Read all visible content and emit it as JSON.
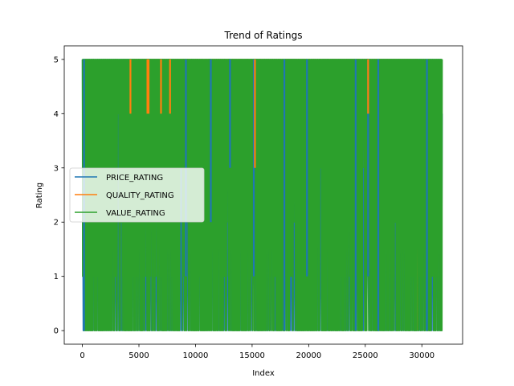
{
  "chart_data": {
    "type": "line",
    "title": "Trend of Ratings",
    "xlabel": "Index",
    "ylabel": "Rating",
    "xlim": [
      -1600,
      33600
    ],
    "ylim": [
      -0.25,
      5.25
    ],
    "xticks": [
      0,
      5000,
      10000,
      15000,
      20000,
      25000,
      30000
    ],
    "yticks": [
      0,
      1,
      2,
      3,
      4,
      5
    ],
    "grid": false,
    "legend_position": "center-left",
    "n_points": 32000,
    "series": [
      {
        "name": "PRICE_RATING",
        "color": "#1f77b4",
        "values_note": "dense oscillation between 0 and 5",
        "segments": [
          {
            "x": 0,
            "y": 5
          },
          {
            "x": 150,
            "y": 0
          },
          {
            "x": 9100,
            "y": 5
          },
          {
            "x": 9150,
            "y": 1
          },
          {
            "x": 11300,
            "y": 5
          },
          {
            "x": 11350,
            "y": 2
          },
          {
            "x": 13000,
            "y": 5
          },
          {
            "x": 13050,
            "y": 3
          },
          {
            "x": 15100,
            "y": 5
          },
          {
            "x": 15150,
            "y": 1
          },
          {
            "x": 17800,
            "y": 5
          },
          {
            "x": 17850,
            "y": 0
          },
          {
            "x": 19800,
            "y": 5
          },
          {
            "x": 19850,
            "y": 1
          },
          {
            "x": 24100,
            "y": 5
          },
          {
            "x": 24150,
            "y": 0
          },
          {
            "x": 25200,
            "y": 5
          },
          {
            "x": 25250,
            "y": 1
          },
          {
            "x": 26100,
            "y": 5
          },
          {
            "x": 26150,
            "y": 0
          },
          {
            "x": 30400,
            "y": 5
          },
          {
            "x": 30450,
            "y": 0
          },
          {
            "x": 31800,
            "y": 4
          }
        ]
      },
      {
        "name": "QUALITY_RATING",
        "color": "#ff7f0e",
        "values_note": "dense oscillation between 0 and 5",
        "segments": [
          {
            "x": 4200,
            "y": 5
          },
          {
            "x": 4250,
            "y": 4
          },
          {
            "x": 5700,
            "y": 5
          },
          {
            "x": 5750,
            "y": 4
          },
          {
            "x": 5800,
            "y": 5
          },
          {
            "x": 5850,
            "y": 4
          },
          {
            "x": 6900,
            "y": 5
          },
          {
            "x": 6950,
            "y": 4
          },
          {
            "x": 7700,
            "y": 5
          },
          {
            "x": 7750,
            "y": 4
          },
          {
            "x": 15200,
            "y": 5
          },
          {
            "x": 15250,
            "y": 3
          },
          {
            "x": 25200,
            "y": 5
          },
          {
            "x": 25250,
            "y": 4
          },
          {
            "x": 29600,
            "y": 5
          },
          {
            "x": 29650,
            "y": 0
          }
        ]
      },
      {
        "name": "VALUE_RATING",
        "color": "#2ca02c",
        "values_note": "dense oscillation between 0 and 5 across full index range, drawn on top",
        "x_start": 0,
        "x_end": 31800,
        "y_min": 0,
        "y_max": 5
      }
    ]
  }
}
